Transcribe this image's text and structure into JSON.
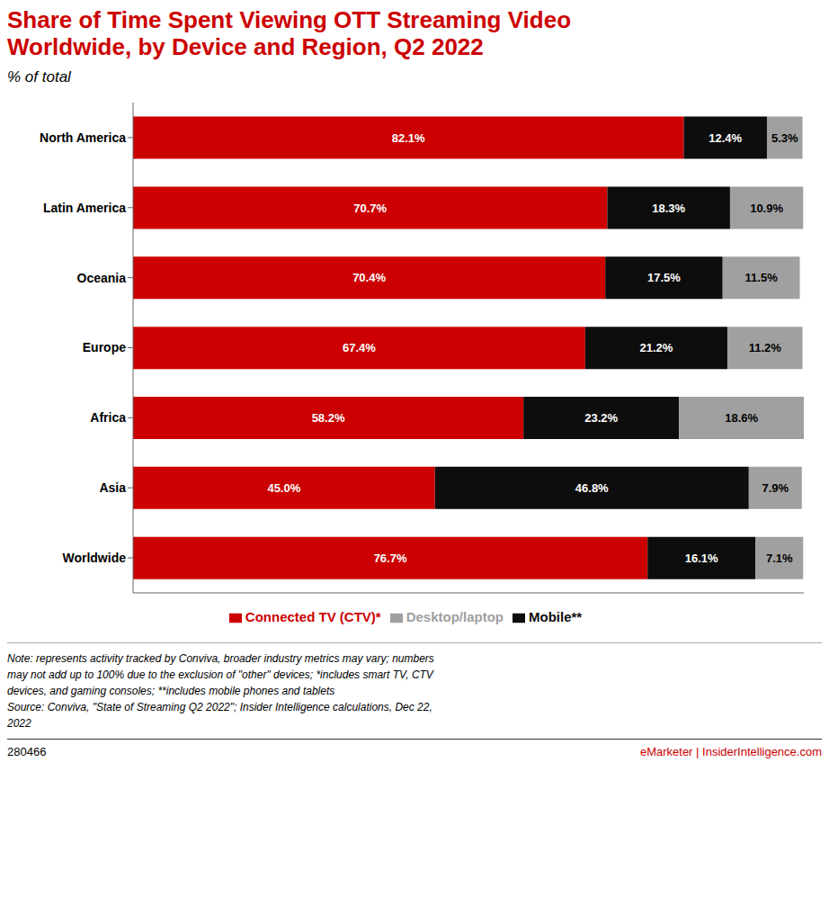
{
  "chart_data": {
    "type": "bar",
    "title": "Share of Time Spent Viewing OTT Streaming Video\nWorldwide, by Device and Region, Q2 2022",
    "subtitle": "% of total",
    "orientation": "horizontal",
    "stacked": true,
    "data_labels": true,
    "grid": false,
    "legend": "bottom",
    "tick_labels": "y",
    "xlim": [
      0,
      100
    ],
    "categories": [
      "North America",
      "Latin America",
      "Oceania",
      "Europe",
      "Africa",
      "Asia",
      "Worldwide"
    ],
    "series": [
      {
        "name": "Connected TV (CTV)*",
        "color": "#cc0000",
        "values": [
          82.1,
          70.7,
          70.4,
          67.4,
          58.2,
          45.0,
          76.7
        ],
        "value_labels": [
          "82.1%",
          "70.7%",
          "70.4%",
          "67.4%",
          "58.2%",
          "45.0%",
          "76.7%"
        ]
      },
      {
        "name": "Mobile**",
        "color": "#0d0d0d",
        "values": [
          12.4,
          18.3,
          17.5,
          21.2,
          23.2,
          46.8,
          16.1
        ],
        "value_labels": [
          "12.4%",
          "18.3%",
          "17.5%",
          "21.2%",
          "23.2%",
          "46.8%",
          "16.1%"
        ]
      },
      {
        "name": "Desktop/laptop",
        "color": "#a0a0a0",
        "values": [
          5.3,
          10.9,
          11.5,
          11.2,
          18.6,
          7.9,
          7.1
        ],
        "value_labels": [
          "5.3%",
          "10.9%",
          "11.5%",
          "11.2%",
          "18.6%",
          "7.9%",
          "7.1%"
        ]
      }
    ],
    "annotations": [
      "Note: represents activity tracked by Conviva, broader industry metrics may vary; numbers\nmay not add up to 100% due to the exclusion of \"other\" devices; *includes smart TV, CTV\ndevices, and gaming consoles; **includes mobile phones and tablets\nSource: Conviva, \"State of Streaming Q2 2022\"; Insider Intelligence calculations, Dec 22,\n2022",
      "280466",
      "eMarketer | InsiderIntelligence.com"
    ]
  }
}
